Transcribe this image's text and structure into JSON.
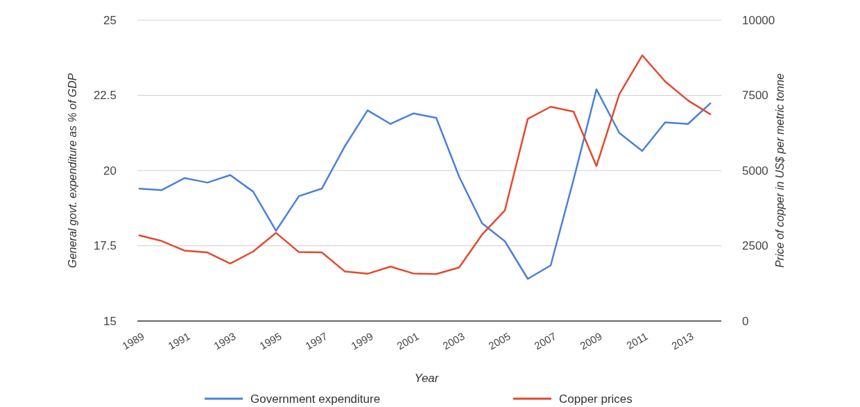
{
  "chart_data": {
    "type": "line",
    "xlabel": "Year",
    "ylabel": "General govt. expenditure as % of GDP",
    "y2label": "Price of copper in US$ per metric tonne",
    "categories": [
      "1989",
      null,
      "1991",
      null,
      "1993",
      null,
      "1995",
      null,
      "1997",
      null,
      "1999",
      null,
      "2001",
      null,
      "2003",
      null,
      "2005",
      null,
      "2007",
      null,
      "2009",
      null,
      "2011",
      null,
      "2013",
      null
    ],
    "series": [
      {
        "name": "Government expenditure",
        "color": "#4a7fdc",
        "values": [
          19.4,
          19.35,
          19.75,
          19.6,
          19.85,
          19.3,
          18.0,
          19.15,
          19.4,
          20.8,
          22.0,
          21.55,
          21.9,
          21.75,
          19.8,
          18.25,
          17.65,
          16.4,
          16.85,
          19.7,
          22.7,
          21.25,
          20.65,
          21.6,
          21.55,
          22.25
        ]
      },
      {
        "name": "Copper prices",
        "color": "#e2492c",
        "axis": "y2",
        "values": [
          2850,
          2660,
          2340,
          2280,
          1910,
          2310,
          2930,
          2290,
          2280,
          1650,
          1570,
          1810,
          1580,
          1560,
          1780,
          2870,
          3680,
          6720,
          7120,
          6960,
          5150,
          7540,
          8830,
          7960,
          7330,
          6860
        ]
      }
    ],
    "ylim": [
      15,
      25
    ],
    "yticks": [
      15,
      17.5,
      20,
      22.5,
      25
    ],
    "y2lim": [
      0,
      10000
    ],
    "y2ticks": [
      0,
      2500,
      5000,
      7500,
      10000
    ],
    "grid": "y",
    "legend": "bottom",
    "line_style": "solid",
    "marker": "none"
  }
}
